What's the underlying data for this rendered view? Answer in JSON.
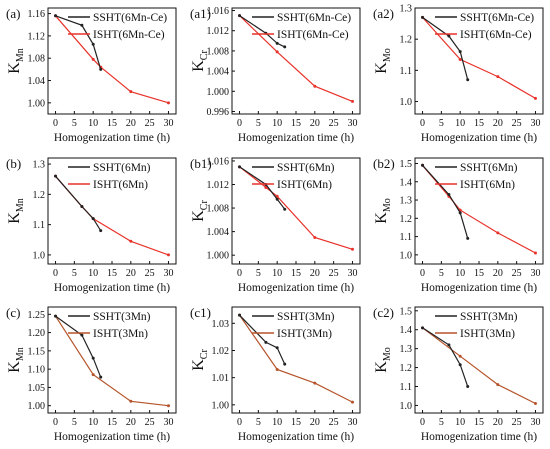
{
  "chart_data": [
    {
      "panel_label": "(a)",
      "type": "line",
      "xlabel": "Homogenization time (h)",
      "ylabel_main": "K",
      "ylabel_sub": "Mn",
      "xlim": [
        -2,
        32
      ],
      "ylim": [
        0.98,
        1.17
      ],
      "x_ticks": [
        0,
        5,
        10,
        15,
        20,
        25,
        30
      ],
      "y_ticks": [
        1.0,
        1.04,
        1.08,
        1.12,
        1.16
      ],
      "y_tick_labels": [
        "1.00",
        "1.04",
        "1.08",
        "1.12",
        "1.16"
      ],
      "series": [
        {
          "name": "SSHT(6Mn-Ce)",
          "color": "#222222",
          "x": [
            0,
            7,
            10,
            12
          ],
          "y": [
            1.156,
            1.139,
            1.105,
            1.06
          ]
        },
        {
          "name": "ISHT(6Mn-Ce)",
          "color": "#e8322a",
          "x": [
            0,
            10,
            12,
            20,
            30
          ],
          "y": [
            1.156,
            1.078,
            1.064,
            1.02,
            1.0
          ]
        }
      ]
    },
    {
      "panel_label": "(a1)",
      "type": "line",
      "xlabel": "Homogenization time (h)",
      "ylabel_main": "K",
      "ylabel_sub": "Cr",
      "xlim": [
        -2,
        32
      ],
      "ylim": [
        0.9955,
        1.0165
      ],
      "x_ticks": [
        0,
        5,
        10,
        15,
        20,
        25,
        30
      ],
      "y_ticks": [
        0.996,
        1.0,
        1.004,
        1.008,
        1.012,
        1.016
      ],
      "y_tick_labels": [
        "0.996",
        "1.000",
        "1.004",
        "1.008",
        "1.012",
        "1.016"
      ],
      "series": [
        {
          "name": "SSHT(6Mn-Ce)",
          "color": "#222222",
          "x": [
            0,
            7,
            10,
            12
          ],
          "y": [
            1.015,
            1.0115,
            1.0095,
            1.0088
          ]
        },
        {
          "name": "ISHT(6Mn-Ce)",
          "color": "#e8322a",
          "x": [
            0,
            10,
            20,
            30
          ],
          "y": [
            1.015,
            1.0078,
            1.001,
            0.998
          ]
        }
      ]
    },
    {
      "panel_label": "(a2)",
      "type": "line",
      "xlabel": "Homogenization time (h)",
      "ylabel_main": "K",
      "ylabel_sub": "Mo",
      "xlim": [
        -2,
        32
      ],
      "ylim": [
        0.96,
        1.3
      ],
      "x_ticks": [
        0,
        5,
        10,
        15,
        20,
        25,
        30
      ],
      "y_ticks": [
        1.0,
        1.1,
        1.2,
        1.3
      ],
      "y_tick_labels": [
        "1.0",
        "1.1",
        "1.2",
        "1.3"
      ],
      "series": [
        {
          "name": "SSHT(6Mn-Ce)",
          "color": "#222222",
          "x": [
            0,
            7,
            10,
            12
          ],
          "y": [
            1.27,
            1.21,
            1.16,
            1.07
          ]
        },
        {
          "name": "ISHT(6Mn-Ce)",
          "color": "#e8322a",
          "x": [
            0,
            10,
            20,
            30
          ],
          "y": [
            1.27,
            1.135,
            1.08,
            1.01
          ]
        }
      ]
    },
    {
      "panel_label": "(b)",
      "type": "line",
      "xlabel": "Homogenization time (h)",
      "ylabel_main": "K",
      "ylabel_sub": "Mn",
      "xlim": [
        -2,
        32
      ],
      "ylim": [
        0.97,
        1.32
      ],
      "x_ticks": [
        0,
        5,
        10,
        15,
        20,
        25,
        30
      ],
      "y_ticks": [
        1.0,
        1.1,
        1.2,
        1.3
      ],
      "y_tick_labels": [
        "1.0",
        "1.1",
        "1.2",
        "1.3"
      ],
      "series": [
        {
          "name": "SSHT(6Mn)",
          "color": "#222222",
          "x": [
            0,
            7,
            10,
            12
          ],
          "y": [
            1.26,
            1.16,
            1.12,
            1.08
          ]
        },
        {
          "name": "ISHT(6Mn)",
          "color": "#e8322a",
          "x": [
            0,
            7,
            10,
            20,
            30
          ],
          "y": [
            1.26,
            1.16,
            1.12,
            1.045,
            1.0
          ]
        }
      ]
    },
    {
      "panel_label": "(b1)",
      "type": "line",
      "xlabel": "Homogenization time (h)",
      "ylabel_main": "K",
      "ylabel_sub": "Cr",
      "xlim": [
        -2,
        32
      ],
      "ylim": [
        0.9985,
        1.0165
      ],
      "x_ticks": [
        0,
        5,
        10,
        15,
        20,
        25,
        30
      ],
      "y_ticks": [
        1.0,
        1.004,
        1.008,
        1.012,
        1.016
      ],
      "y_tick_labels": [
        "1.000",
        "1.004",
        "1.008",
        "1.012",
        "1.016"
      ],
      "series": [
        {
          "name": "SSHT(6Mn)",
          "color": "#222222",
          "x": [
            0,
            7,
            10,
            12
          ],
          "y": [
            1.015,
            1.012,
            1.0095,
            1.0078
          ]
        },
        {
          "name": "ISHT(6Mn)",
          "color": "#e8322a",
          "x": [
            0,
            7,
            10,
            20,
            30
          ],
          "y": [
            1.015,
            1.0115,
            1.01,
            1.003,
            1.001
          ]
        }
      ]
    },
    {
      "panel_label": "(b2)",
      "type": "line",
      "xlabel": "Homogenization time (h)",
      "ylabel_main": "K",
      "ylabel_sub": "Mo",
      "xlim": [
        -2,
        32
      ],
      "ylim": [
        0.95,
        1.53
      ],
      "x_ticks": [
        0,
        5,
        10,
        15,
        20,
        25,
        30
      ],
      "y_ticks": [
        1.0,
        1.1,
        1.2,
        1.3,
        1.4,
        1.5
      ],
      "y_tick_labels": [
        "1.0",
        "1.1",
        "1.2",
        "1.3",
        "1.4",
        "1.5"
      ],
      "series": [
        {
          "name": "SSHT(6Mn)",
          "color": "#222222",
          "x": [
            0,
            7,
            10,
            12
          ],
          "y": [
            1.49,
            1.33,
            1.23,
            1.09
          ]
        },
        {
          "name": "ISHT(6Mn)",
          "color": "#e8322a",
          "x": [
            0,
            7,
            10,
            20,
            30
          ],
          "y": [
            1.49,
            1.32,
            1.245,
            1.12,
            1.01
          ]
        }
      ]
    },
    {
      "panel_label": "(c)",
      "type": "line",
      "xlabel": "Homogenization time (h)",
      "ylabel_main": "K",
      "ylabel_sub": "Mn",
      "xlim": [
        -2,
        32
      ],
      "ylim": [
        0.98,
        1.27
      ],
      "x_ticks": [
        0,
        5,
        10,
        15,
        20,
        25,
        30
      ],
      "y_ticks": [
        1.0,
        1.05,
        1.1,
        1.15,
        1.2,
        1.25
      ],
      "y_tick_labels": [
        "1.00",
        "1.05",
        "1.10",
        "1.15",
        "1.20",
        "1.25"
      ],
      "series": [
        {
          "name": "SSHT(3Mn)",
          "color": "#222222",
          "x": [
            0,
            7,
            10,
            12
          ],
          "y": [
            1.245,
            1.193,
            1.13,
            1.078
          ]
        },
        {
          "name": "ISHT(3Mn)",
          "color": "#b5542a",
          "x": [
            0,
            10,
            20,
            30
          ],
          "y": [
            1.245,
            1.085,
            1.012,
            1.0
          ]
        }
      ]
    },
    {
      "panel_label": "(c1)",
      "type": "line",
      "xlabel": "Homogenization time (h)",
      "ylabel_main": "K",
      "ylabel_sub": "Cr",
      "xlim": [
        -2,
        32
      ],
      "ylim": [
        0.997,
        1.036
      ],
      "x_ticks": [
        0,
        5,
        10,
        15,
        20,
        25,
        30
      ],
      "y_ticks": [
        1.0,
        1.01,
        1.02,
        1.03
      ],
      "y_tick_labels": [
        "1.00",
        "1.01",
        "1.02",
        "1.03"
      ],
      "series": [
        {
          "name": "SSHT(3Mn)",
          "color": "#222222",
          "x": [
            0,
            7,
            10,
            12
          ],
          "y": [
            1.033,
            1.023,
            1.021,
            1.015
          ]
        },
        {
          "name": "ISHT(3Mn)",
          "color": "#b5542a",
          "x": [
            0,
            10,
            20,
            30
          ],
          "y": [
            1.033,
            1.013,
            1.008,
            1.001
          ]
        }
      ]
    },
    {
      "panel_label": "(c2)",
      "type": "line",
      "xlabel": "Homogenization time (h)",
      "ylabel_main": "K",
      "ylabel_sub": "Mo",
      "xlim": [
        -2,
        32
      ],
      "ylim": [
        0.96,
        1.52
      ],
      "x_ticks": [
        0,
        5,
        10,
        15,
        20,
        25,
        30
      ],
      "y_ticks": [
        1.0,
        1.1,
        1.2,
        1.3,
        1.4,
        1.5
      ],
      "y_tick_labels": [
        "1.0",
        "1.1",
        "1.2",
        "1.3",
        "1.4",
        "1.5"
      ],
      "series": [
        {
          "name": "SSHT(3Mn)",
          "color": "#222222",
          "x": [
            0,
            7,
            10,
            12
          ],
          "y": [
            1.41,
            1.32,
            1.215,
            1.1
          ]
        },
        {
          "name": "ISHT(3Mn)",
          "color": "#b5542a",
          "x": [
            0,
            10,
            20,
            30
          ],
          "y": [
            1.41,
            1.26,
            1.11,
            1.01
          ]
        }
      ]
    }
  ]
}
